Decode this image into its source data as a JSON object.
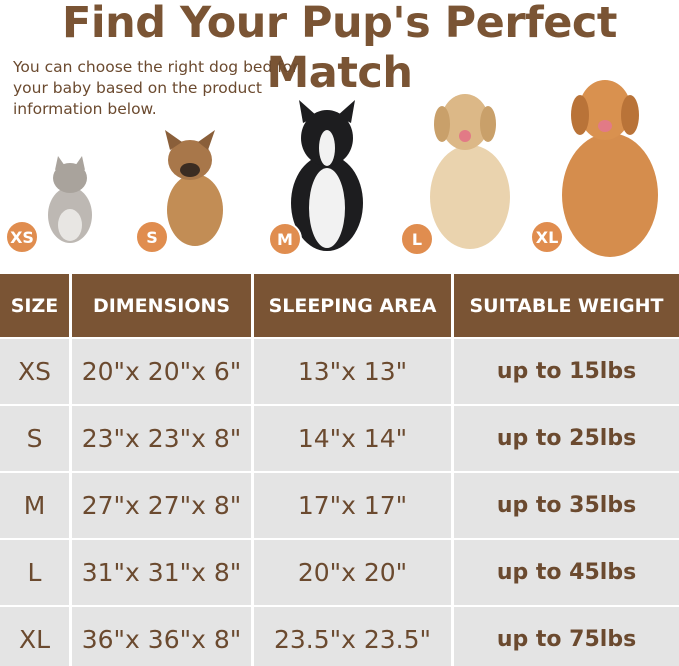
{
  "title": "Find Your Pup's Perfect Match",
  "subtitle": "You can choose the right dog bed for your baby based on the product information below.",
  "colors": {
    "header": "#7a5434",
    "text": "#6b4a2f",
    "badge": "#e08d4f",
    "cell": "#e4e4e4"
  },
  "pets": [
    {
      "badge": "XS",
      "animal": "cat"
    },
    {
      "badge": "S",
      "animal": "french bulldog"
    },
    {
      "badge": "M",
      "animal": "border collie"
    },
    {
      "badge": "L",
      "animal": "golden retriever"
    },
    {
      "badge": "XL",
      "animal": "golden retriever"
    }
  ],
  "table": {
    "headers": [
      "SIZE",
      "DIMENSIONS",
      "SLEEPING AREA",
      "SUITABLE WEIGHT"
    ],
    "rows": [
      [
        "XS",
        "20\"x 20\"x 6\"",
        "13\"x 13\"",
        "up to 15lbs"
      ],
      [
        "S",
        "23\"x 23\"x 8\"",
        "14\"x 14\"",
        "up to 25lbs"
      ],
      [
        "M",
        "27\"x 27\"x 8\"",
        "17\"x 17\"",
        "up to 35lbs"
      ],
      [
        "L",
        "31\"x 31\"x 8\"",
        "20\"x 20\"",
        "up to 45lbs"
      ],
      [
        "XL",
        "36\"x 36\"x 8\"",
        "23.5\"x 23.5\"",
        "up to 75lbs"
      ]
    ]
  }
}
